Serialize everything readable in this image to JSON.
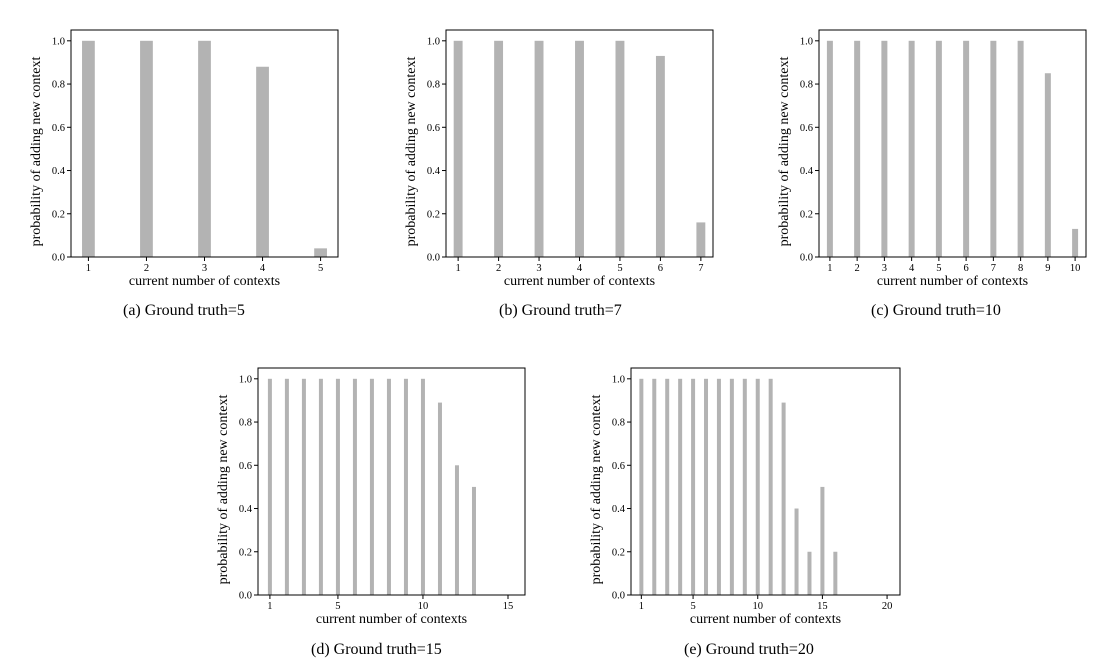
{
  "bar_color": "#b3b3b3",
  "chart_data": [
    {
      "type": "bar",
      "caption": "(a)  Ground truth=5",
      "xlabel": "current number of contexts",
      "ylabel": "probability of adding new context",
      "x": [
        1,
        2,
        3,
        4,
        5
      ],
      "values": [
        1.0,
        1.0,
        1.0,
        0.88,
        0.04
      ],
      "xticks": [
        1,
        2,
        3,
        4,
        5
      ],
      "xlim": [
        0.7,
        5.3
      ],
      "ylim": [
        0,
        1.05
      ],
      "yticks": [
        "0.0",
        "0.2",
        "0.4",
        "0.6",
        "0.8",
        "1.0"
      ]
    },
    {
      "type": "bar",
      "caption": "(b)  Ground truth=7",
      "xlabel": "current number of contexts",
      "ylabel": "probability of adding new context",
      "x": [
        1,
        2,
        3,
        4,
        5,
        6,
        7
      ],
      "values": [
        1.0,
        1.0,
        1.0,
        1.0,
        1.0,
        0.93,
        0.16
      ],
      "xticks": [
        1,
        2,
        3,
        4,
        5,
        6,
        7
      ],
      "xlim": [
        0.7,
        7.3
      ],
      "ylim": [
        0,
        1.05
      ],
      "yticks": [
        "0.0",
        "0.2",
        "0.4",
        "0.6",
        "0.8",
        "1.0"
      ]
    },
    {
      "type": "bar",
      "caption": "(c)  Ground truth=10",
      "xlabel": "current number of contexts",
      "ylabel": "probability of adding new context",
      "x": [
        1,
        2,
        3,
        4,
        5,
        6,
        7,
        8,
        9,
        10
      ],
      "values": [
        1.0,
        1.0,
        1.0,
        1.0,
        1.0,
        1.0,
        1.0,
        1.0,
        0.85,
        0.13
      ],
      "xticks": [
        1,
        2,
        3,
        4,
        5,
        6,
        7,
        8,
        9,
        10
      ],
      "xlim": [
        0.6,
        10.4
      ],
      "ylim": [
        0,
        1.05
      ],
      "yticks": [
        "0.0",
        "0.2",
        "0.4",
        "0.6",
        "0.8",
        "1.0"
      ]
    },
    {
      "type": "bar",
      "caption": "(d)  Ground truth=15",
      "xlabel": "current number of contexts",
      "ylabel": "probability of adding new context",
      "x": [
        1,
        2,
        3,
        4,
        5,
        6,
        7,
        8,
        9,
        10,
        11,
        12,
        13
      ],
      "values": [
        1.0,
        1.0,
        1.0,
        1.0,
        1.0,
        1.0,
        1.0,
        1.0,
        1.0,
        1.0,
        0.89,
        0.6,
        0.5
      ],
      "xticks": [
        1,
        5,
        10,
        15
      ],
      "xlim": [
        0.3,
        16.0
      ],
      "ylim": [
        0,
        1.05
      ],
      "yticks": [
        "0.0",
        "0.2",
        "0.4",
        "0.6",
        "0.8",
        "1.0"
      ]
    },
    {
      "type": "bar",
      "caption": "(e)  Ground truth=20",
      "xlabel": "current number of contexts",
      "ylabel": "probability of adding new context",
      "x": [
        1,
        2,
        3,
        4,
        5,
        6,
        7,
        8,
        9,
        10,
        11,
        12,
        13,
        14,
        15,
        16
      ],
      "values": [
        1.0,
        1.0,
        1.0,
        1.0,
        1.0,
        1.0,
        1.0,
        1.0,
        1.0,
        1.0,
        1.0,
        0.89,
        0.4,
        0.2,
        0.5,
        0.2
      ],
      "xticks": [
        1,
        5,
        10,
        15,
        20
      ],
      "xlim": [
        0.2,
        21.0
      ],
      "ylim": [
        0,
        1.05
      ],
      "yticks": [
        "0.0",
        "0.2",
        "0.4",
        "0.6",
        "0.8",
        "1.0"
      ]
    }
  ]
}
